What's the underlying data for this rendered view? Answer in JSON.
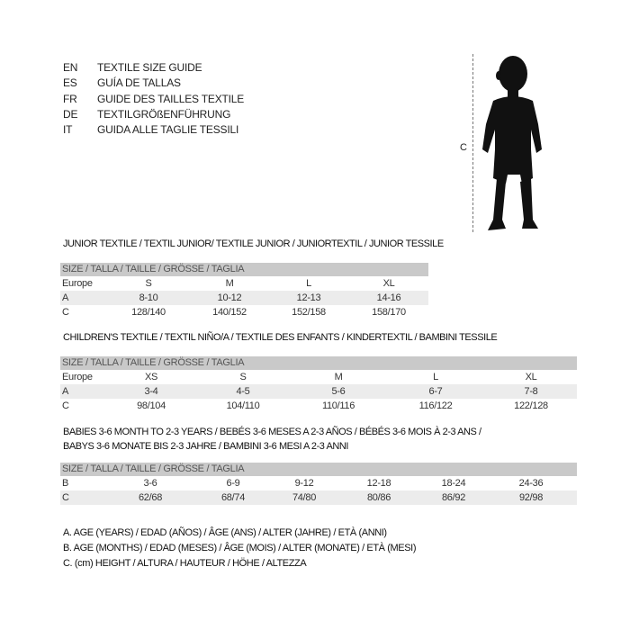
{
  "languages": [
    {
      "code": "EN",
      "text": "TEXTILE SIZE GUIDE"
    },
    {
      "code": "ES",
      "text": "GUÍA DE TALLAS"
    },
    {
      "code": "FR",
      "text": "GUIDE DES TAILLES TEXTILE"
    },
    {
      "code": "DE",
      "text": "TEXTILGRÖßENFÜHRUNG"
    },
    {
      "code": "IT",
      "text": "GUIDA ALLE TAGLIE TESSILI"
    }
  ],
  "figure": {
    "label": "C",
    "icon": "child-silhouette-icon"
  },
  "junior": {
    "title": "JUNIOR TEXTILE / TEXTIL JUNIOR/ TEXTILE JUNIOR / JUNIORTEXTIL / JUNIOR TESSILE",
    "header": "SIZE / TALLA / TAILLE / GRÖSSE / TAGLIA",
    "rows": [
      {
        "label": "Europe",
        "cells": [
          "S",
          "M",
          "L",
          "XL"
        ]
      },
      {
        "label": "A",
        "cells": [
          "8-10",
          "10-12",
          "12-13",
          "14-16"
        ]
      },
      {
        "label": "C",
        "cells": [
          "128/140",
          "140/152",
          "152/158",
          "158/170"
        ]
      }
    ]
  },
  "children": {
    "title": "CHILDREN'S TEXTILE / TEXTIL NIÑO/A / TEXTILE DES ENFANTS / KINDERTEXTIL / BAMBINI TESSILE",
    "header": "SIZE / TALLA / TAILLE / GRÖSSE / TAGLIA",
    "rows": [
      {
        "label": "Europe",
        "cells": [
          "XS",
          "S",
          "M",
          "L",
          "XL"
        ]
      },
      {
        "label": "A",
        "cells": [
          "3-4",
          "4-5",
          "5-6",
          "6-7",
          "7-8"
        ]
      },
      {
        "label": "C",
        "cells": [
          "98/104",
          "104/110",
          "110/116",
          "116/122",
          "122/128"
        ]
      }
    ]
  },
  "babies": {
    "title_line1": "BABIES 3-6 MONTH TO 2-3 YEARS / BEBÉS 3-6 MESES A 2-3 AÑOS / BÉBÉS 3-6 MOIS À 2-3 ANS /",
    "title_line2": "BABYS 3-6 MONATE BIS 2-3 JAHRE / BAMBINI 3-6 MESI A 2-3 ANNI",
    "header": "SIZE / TALLA / TAILLE / GRÖSSE / TAGLIA",
    "rows": [
      {
        "label": "B",
        "cells": [
          "3-6",
          "6-9",
          "9-12",
          "12-18",
          "18-24",
          "24-36"
        ]
      },
      {
        "label": "C",
        "cells": [
          "62/68",
          "68/74",
          "74/80",
          "80/86",
          "86/92",
          "92/98"
        ]
      }
    ]
  },
  "legend": [
    "A. AGE (YEARS) / EDAD (AÑOS) / ÂGE (ANS) / ALTER (JAHRE) / ETÀ (ANNI)",
    "B. AGE (MONTHS) / EDAD (MESES) / ÂGE (MOIS) / ALTER (MONATE) / ETÀ (MESI)",
    "C. (cm) HEIGHT / ALTURA / HAUTEUR / HÖHE / ALTEZZA"
  ]
}
